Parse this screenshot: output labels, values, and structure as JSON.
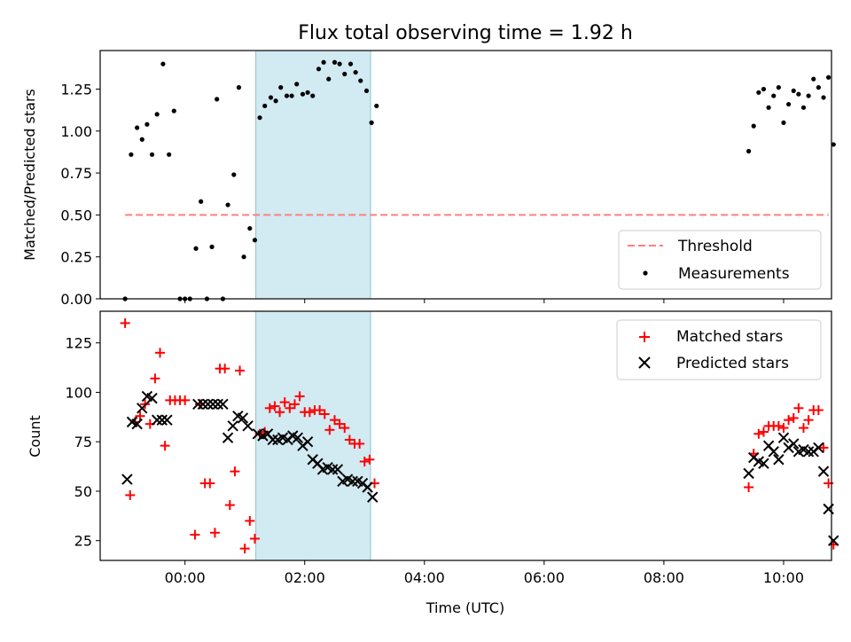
{
  "figure": {
    "title": "Flux total observing time = 1.92 h",
    "xlabel": "Time (UTC)"
  },
  "chart_data": [
    {
      "type": "scatter",
      "panel": "top",
      "ylabel": "Matched/Predicted stars",
      "xlim": [
        "-01:25",
        "10:48"
      ],
      "ylim": [
        0,
        1.48
      ],
      "yticks": [
        "0.00",
        "0.25",
        "0.50",
        "0.75",
        "1.00",
        "1.25"
      ],
      "shaded_span": [
        "01:11",
        "03:06"
      ],
      "threshold": {
        "name": "Threshold",
        "value": 0.5,
        "x": [
          "-01:00",
          "10:45"
        ],
        "color": "#ff7f7f"
      },
      "legend": {
        "position": "lower-right",
        "entries": [
          "Threshold",
          "Measurements"
        ]
      },
      "series": [
        {
          "name": "Measurements",
          "color": "#000000",
          "points": [
            [
              "-01:00",
              0.0
            ],
            [
              "-00:54",
              0.86
            ],
            [
              "-00:48",
              1.02
            ],
            [
              "-00:43",
              0.95
            ],
            [
              "-00:38",
              1.04
            ],
            [
              "-00:33",
              0.86
            ],
            [
              "-00:28",
              1.1
            ],
            [
              "-00:22",
              1.4
            ],
            [
              "-00:16",
              0.86
            ],
            [
              "-00:11",
              1.12
            ],
            [
              "-00:05",
              0.0
            ],
            [
              "00:00",
              0.0
            ],
            [
              "00:05",
              0.0
            ],
            [
              "00:11",
              0.3
            ],
            [
              "00:16",
              0.58
            ],
            [
              "00:22",
              0.0
            ],
            [
              "00:27",
              0.31
            ],
            [
              "00:32",
              1.19
            ],
            [
              "00:38",
              0.0
            ],
            [
              "00:43",
              0.56
            ],
            [
              "00:49",
              0.74
            ],
            [
              "00:54",
              1.26
            ],
            [
              "00:59",
              0.25
            ],
            [
              "01:05",
              0.42
            ],
            [
              "01:10",
              0.35
            ],
            [
              "01:15",
              1.08
            ],
            [
              "01:20",
              1.15
            ],
            [
              "01:26",
              1.2
            ],
            [
              "01:31",
              1.18
            ],
            [
              "01:36",
              1.26
            ],
            [
              "01:42",
              1.21
            ],
            [
              "01:47",
              1.21
            ],
            [
              "01:52",
              1.28
            ],
            [
              "01:58",
              1.22
            ],
            [
              "02:03",
              1.23
            ],
            [
              "02:08",
              1.21
            ],
            [
              "02:14",
              1.37
            ],
            [
              "02:19",
              1.41
            ],
            [
              "02:24",
              1.31
            ],
            [
              "02:30",
              1.41
            ],
            [
              "02:35",
              1.4
            ],
            [
              "02:40",
              1.34
            ],
            [
              "02:46",
              1.4
            ],
            [
              "02:51",
              1.35
            ],
            [
              "02:56",
              1.3
            ],
            [
              "03:02",
              1.24
            ],
            [
              "03:07",
              1.05
            ],
            [
              "03:12",
              1.15
            ],
            [
              "09:25",
              0.88
            ],
            [
              "09:30",
              1.03
            ],
            [
              "09:35",
              1.23
            ],
            [
              "09:40",
              1.25
            ],
            [
              "09:45",
              1.14
            ],
            [
              "09:50",
              1.21
            ],
            [
              "09:55",
              1.26
            ],
            [
              "10:00",
              1.05
            ],
            [
              "10:05",
              1.16
            ],
            [
              "10:10",
              1.24
            ],
            [
              "10:15",
              1.22
            ],
            [
              "10:20",
              1.14
            ],
            [
              "10:25",
              1.21
            ],
            [
              "10:30",
              1.31
            ],
            [
              "10:35",
              1.26
            ],
            [
              "10:40",
              1.2
            ],
            [
              "10:45",
              1.32
            ],
            [
              "10:50",
              0.92
            ]
          ]
        }
      ]
    },
    {
      "type": "scatter",
      "panel": "bottom",
      "ylabel": "Count",
      "xlabel": "Time (UTC)",
      "xlim": [
        "-01:25",
        "10:48"
      ],
      "ylim": [
        15,
        141
      ],
      "yticks": [
        "25",
        "50",
        "75",
        "100",
        "125"
      ],
      "xticks": [
        "00:00",
        "02:00",
        "04:00",
        "06:00",
        "08:00",
        "10:00"
      ],
      "shaded_span": [
        "01:11",
        "03:06"
      ],
      "legend": {
        "position": "upper-right",
        "entries": [
          "Matched stars",
          "Predicted stars"
        ]
      },
      "series": [
        {
          "name": "Matched stars",
          "color": "#ff0000",
          "marker": "plus",
          "points": [
            [
              "-01:00",
              135
            ],
            [
              "-00:55",
              48
            ],
            [
              "-00:50",
              85
            ],
            [
              "-00:45",
              88
            ],
            [
              "-00:40",
              94
            ],
            [
              "-00:35",
              84
            ],
            [
              "-00:30",
              107
            ],
            [
              "-00:25",
              120
            ],
            [
              "-00:20",
              73
            ],
            [
              "-00:15",
              96
            ],
            [
              "-00:10",
              96
            ],
            [
              "-00:05",
              96
            ],
            [
              "00:00",
              96
            ],
            [
              "00:10",
              28
            ],
            [
              "00:15",
              94
            ],
            [
              "00:20",
              54
            ],
            [
              "00:25",
              54
            ],
            [
              "00:30",
              29
            ],
            [
              "00:35",
              112
            ],
            [
              "00:40",
              112
            ],
            [
              "00:45",
              43
            ],
            [
              "00:50",
              60
            ],
            [
              "00:55",
              111
            ],
            [
              "01:00",
              21
            ],
            [
              "01:05",
              35
            ],
            [
              "01:10",
              26
            ],
            [
              "01:15",
              79
            ],
            [
              "01:20",
              80
            ],
            [
              "01:25",
              92
            ],
            [
              "01:30",
              93
            ],
            [
              "01:35",
              90
            ],
            [
              "01:40",
              95
            ],
            [
              "01:45",
              92
            ],
            [
              "01:50",
              94
            ],
            [
              "01:55",
              98
            ],
            [
              "02:00",
              90
            ],
            [
              "02:05",
              90
            ],
            [
              "02:10",
              91
            ],
            [
              "02:15",
              91
            ],
            [
              "02:20",
              89
            ],
            [
              "02:25",
              81
            ],
            [
              "02:30",
              86
            ],
            [
              "02:35",
              84
            ],
            [
              "02:40",
              82
            ],
            [
              "02:45",
              76
            ],
            [
              "02:50",
              74
            ],
            [
              "02:55",
              74
            ],
            [
              "03:00",
              65
            ],
            [
              "03:05",
              66
            ],
            [
              "03:10",
              54
            ],
            [
              "09:25",
              52
            ],
            [
              "09:30",
              69
            ],
            [
              "09:35",
              79
            ],
            [
              "09:40",
              80
            ],
            [
              "09:45",
              83
            ],
            [
              "09:50",
              83
            ],
            [
              "09:55",
              83
            ],
            [
              "10:00",
              82
            ],
            [
              "10:05",
              86
            ],
            [
              "10:10",
              87
            ],
            [
              "10:15",
              92
            ],
            [
              "10:20",
              82
            ],
            [
              "10:25",
              86
            ],
            [
              "10:30",
              91
            ],
            [
              "10:35",
              91
            ],
            [
              "10:40",
              72
            ],
            [
              "10:45",
              54
            ],
            [
              "10:50",
              23
            ]
          ]
        },
        {
          "name": "Predicted stars",
          "color": "#000000",
          "marker": "x",
          "points": [
            [
              "-00:58",
              56
            ],
            [
              "-00:53",
              85
            ],
            [
              "-00:48",
              84
            ],
            [
              "-00:43",
              92
            ],
            [
              "-00:38",
              98
            ],
            [
              "-00:33",
              97
            ],
            [
              "-00:28",
              86
            ],
            [
              "-00:23",
              86
            ],
            [
              "-00:18",
              86
            ],
            [
              "00:13",
              94
            ],
            [
              "00:18",
              94
            ],
            [
              "00:23",
              94
            ],
            [
              "00:28",
              94
            ],
            [
              "00:33",
              94
            ],
            [
              "00:38",
              94
            ],
            [
              "00:43",
              77
            ],
            [
              "00:48",
              83
            ],
            [
              "00:53",
              88
            ],
            [
              "00:58",
              87
            ],
            [
              "01:03",
              83
            ],
            [
              "01:13",
              79
            ],
            [
              "01:18",
              78
            ],
            [
              "01:23",
              79
            ],
            [
              "01:28",
              76
            ],
            [
              "01:33",
              76
            ],
            [
              "01:38",
              77
            ],
            [
              "01:43",
              76
            ],
            [
              "01:48",
              78
            ],
            [
              "01:53",
              77
            ],
            [
              "01:58",
              73
            ],
            [
              "02:03",
              75
            ],
            [
              "02:08",
              66
            ],
            [
              "02:13",
              64
            ],
            [
              "02:18",
              61
            ],
            [
              "02:23",
              62
            ],
            [
              "02:28",
              61
            ],
            [
              "02:33",
              61
            ],
            [
              "02:38",
              55
            ],
            [
              "02:43",
              56
            ],
            [
              "02:48",
              55
            ],
            [
              "02:53",
              55
            ],
            [
              "02:58",
              54
            ],
            [
              "03:03",
              52
            ],
            [
              "03:08",
              47
            ],
            [
              "09:25",
              59
            ],
            [
              "09:30",
              67
            ],
            [
              "09:35",
              65
            ],
            [
              "09:40",
              64
            ],
            [
              "09:45",
              73
            ],
            [
              "09:50",
              70
            ],
            [
              "09:55",
              66
            ],
            [
              "10:00",
              77
            ],
            [
              "10:05",
              72
            ],
            [
              "10:10",
              74
            ],
            [
              "10:15",
              70
            ],
            [
              "10:20",
              71
            ],
            [
              "10:25",
              70
            ],
            [
              "10:30",
              70
            ],
            [
              "10:35",
              72
            ],
            [
              "10:40",
              60
            ],
            [
              "10:45",
              41
            ],
            [
              "10:50",
              25
            ]
          ]
        }
      ]
    }
  ]
}
